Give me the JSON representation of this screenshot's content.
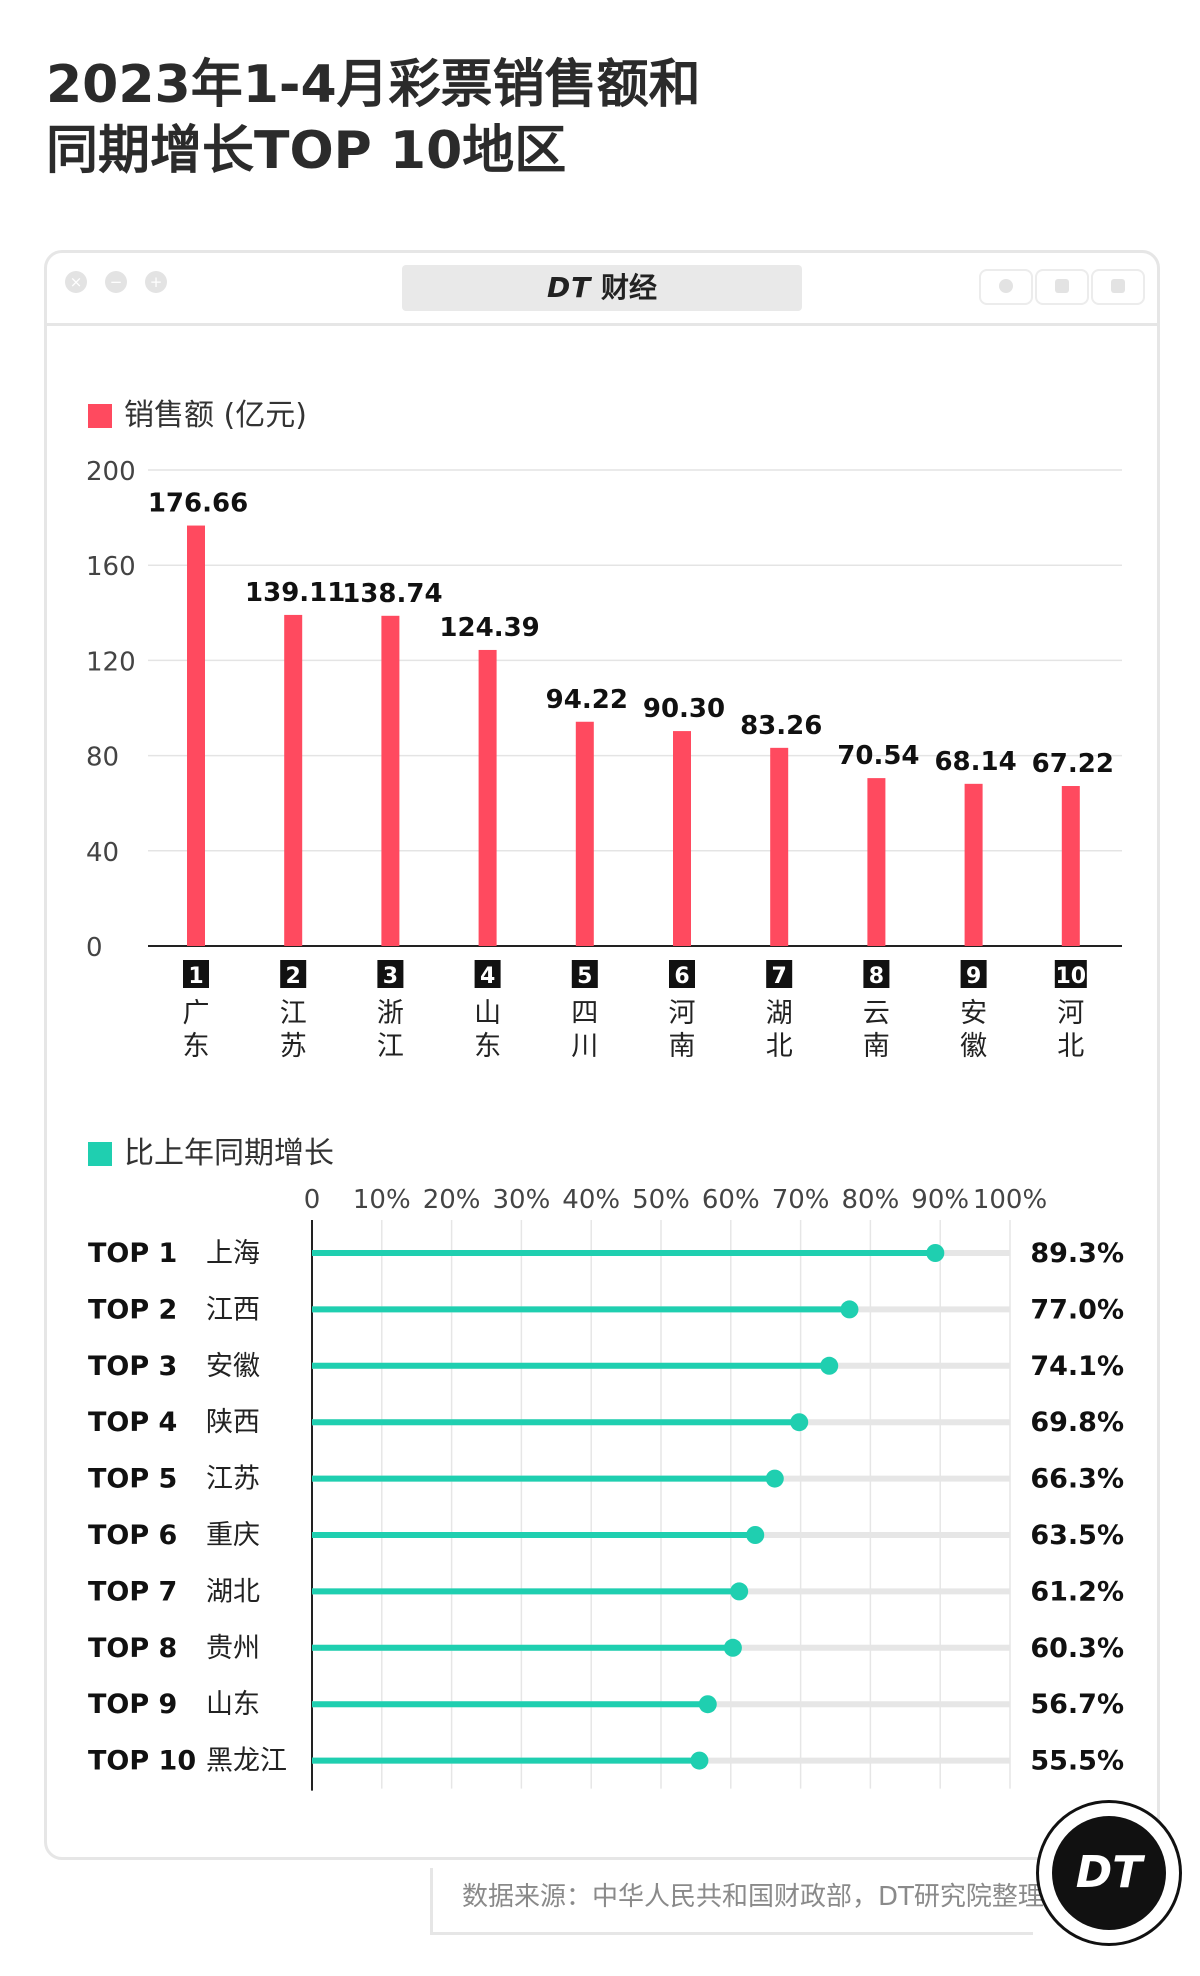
{
  "title": {
    "line1": "2023年1-4月彩票销售额和",
    "line2": "同期增长TOP 10地区"
  },
  "brand": {
    "logo_text": "DT",
    "name": "财经",
    "badge_text": "DT"
  },
  "colors": {
    "bar": "#ff4a5f",
    "lollipop": "#1fcfb0",
    "track": "#e6e6e6"
  },
  "source": "数据来源：中华人民共和国财政部，DT研究院整理",
  "chart_data": [
    {
      "type": "bar",
      "legend": "销售额 (亿元)",
      "categories": [
        "广东",
        "江苏",
        "浙江",
        "山东",
        "四川",
        "河南",
        "湖北",
        "云南",
        "安徽",
        "河北"
      ],
      "ranks": [
        "1",
        "2",
        "3",
        "4",
        "5",
        "6",
        "7",
        "8",
        "9",
        "10"
      ],
      "values": [
        176.66,
        139.11,
        138.74,
        124.39,
        94.22,
        90.3,
        83.26,
        70.54,
        68.14,
        67.22
      ],
      "value_labels": [
        "176.66",
        "139.11",
        "138.74",
        "124.39",
        "94.22",
        "90.30",
        "83.26",
        "70.54",
        "68.14",
        "67.22"
      ],
      "ylim": [
        0,
        200
      ],
      "yticks": [
        0,
        40,
        80,
        120,
        160,
        200
      ],
      "grid": true
    },
    {
      "type": "lollipop",
      "legend": "比上年同期增长",
      "ranks": [
        "TOP 1",
        "TOP 2",
        "TOP 3",
        "TOP 4",
        "TOP 5",
        "TOP 6",
        "TOP 7",
        "TOP 8",
        "TOP 9",
        "TOP 10"
      ],
      "categories": [
        "上海",
        "江西",
        "安徽",
        "陕西",
        "江苏",
        "重庆",
        "湖北",
        "贵州",
        "山东",
        "黑龙江"
      ],
      "values": [
        89.3,
        77.0,
        74.1,
        69.8,
        66.3,
        63.5,
        61.2,
        60.3,
        56.7,
        55.5
      ],
      "value_labels": [
        "89.3%",
        "77.0%",
        "74.1%",
        "69.8%",
        "66.3%",
        "63.5%",
        "61.2%",
        "60.3%",
        "56.7%",
        "55.5%"
      ],
      "xlim": [
        0,
        100
      ],
      "xticks": [
        "0",
        "10%",
        "20%",
        "30%",
        "40%",
        "50%",
        "60%",
        "70%",
        "80%",
        "90%",
        "100%"
      ],
      "grid": true
    }
  ]
}
